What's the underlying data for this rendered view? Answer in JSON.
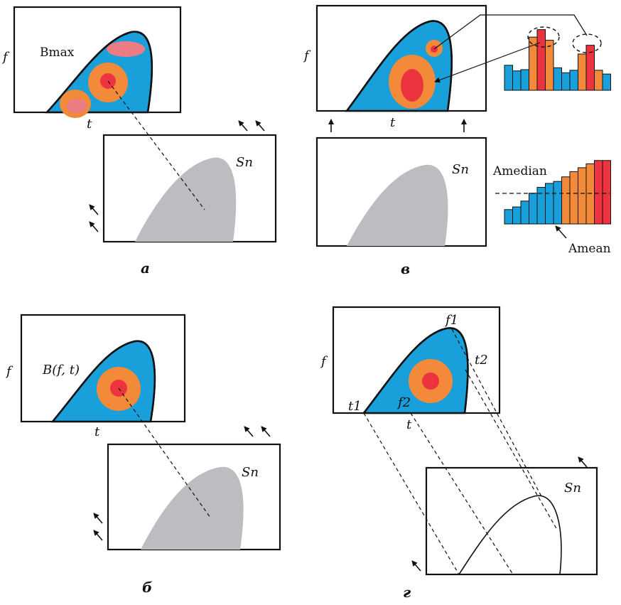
{
  "colors": {
    "blue": "#199fd9",
    "orange": "#f28a3a",
    "red": "#ee3340",
    "pink": "#ec7c84",
    "gray": "#bcbdc0",
    "black": "#111111"
  },
  "panel_a": {
    "caption": "а",
    "f_label": "f",
    "t_label": "t",
    "bmax_label": "Bmax",
    "sn_label": "Sn"
  },
  "panel_b": {
    "caption": "б",
    "f_label": "f",
    "t_label": "t",
    "b_label": "B(f, t)",
    "sn_label": "Sn"
  },
  "panel_v": {
    "caption": "в",
    "f_label": "f",
    "t_label": "t",
    "sn_label": "Sn",
    "amedian_label": "Amedian",
    "amean_label": "Amean",
    "hist_top_colors": [
      "blue",
      "blue",
      "blue",
      "orange",
      "red",
      "orange",
      "blue",
      "blue",
      "blue",
      "orange",
      "red",
      "orange",
      "blue"
    ],
    "hist_top_values": [
      40,
      31,
      33,
      85,
      97,
      80,
      36,
      28,
      32,
      58,
      72,
      32,
      26
    ],
    "hist_bottom_colors": [
      "blue",
      "blue",
      "blue",
      "blue",
      "blue",
      "blue",
      "blue",
      "orange",
      "orange",
      "orange",
      "orange",
      "red",
      "red"
    ],
    "hist_bottom_values": [
      22,
      26,
      35,
      47,
      56,
      62,
      65,
      72,
      80,
      86,
      92,
      97,
      97
    ]
  },
  "panel_g": {
    "caption": "г",
    "f_label": "f",
    "t_label": "t",
    "f1_label": "f1",
    "f2_label": "f2",
    "t1_label": "t1",
    "t2_label": "t2",
    "sn_label": "Sn"
  }
}
